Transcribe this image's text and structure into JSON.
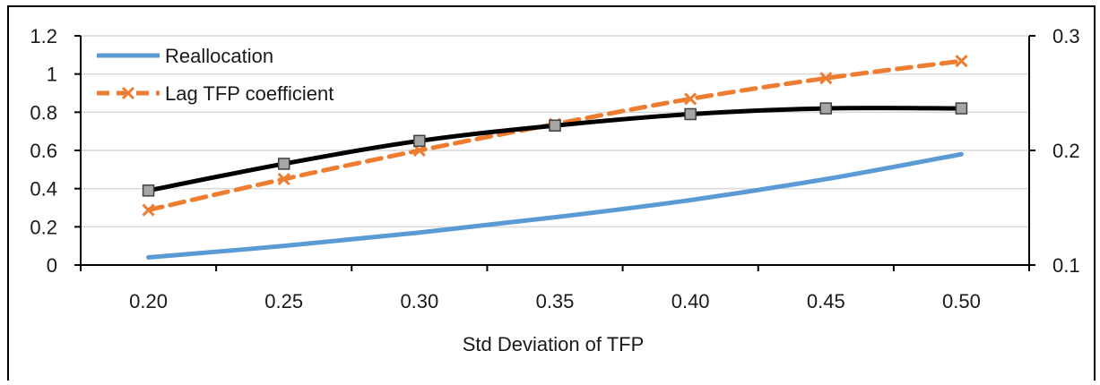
{
  "caption": {
    "text": ""
  },
  "chart_data": {
    "type": "line",
    "title": "",
    "xlabel": "Std Deviation of TFP",
    "ylabel_left": "",
    "ylabel_right": "",
    "categories": [
      "0.20",
      "0.25",
      "0.30",
      "0.35",
      "0.40",
      "0.45",
      "0.50"
    ],
    "left_axis": {
      "range": [
        0,
        1.2
      ],
      "ticks": [
        "0",
        "0.2",
        "0.4",
        "0.6",
        "0.8",
        "1",
        "1.2"
      ]
    },
    "right_axis": {
      "range": [
        0.1,
        0.3
      ],
      "ticks": [
        "0.1",
        "0.2",
        "0.3"
      ]
    },
    "grid": true,
    "legend_position": "top-left",
    "series": [
      {
        "name": "Reallocation",
        "axis": "left",
        "color": "#5b9bd5",
        "style": "solid",
        "marker": "none",
        "values": [
          0.04,
          0.1,
          0.17,
          0.25,
          0.34,
          0.45,
          0.58
        ]
      },
      {
        "name": "Lag TFP coefficient",
        "axis": "right",
        "color": "#ed7d31",
        "style": "dashed",
        "marker": "x",
        "values": [
          0.148,
          0.175,
          0.2,
          0.223,
          0.245,
          0.263,
          0.278
        ]
      },
      {
        "name": "",
        "axis": "left",
        "color": "#000000",
        "style": "solid",
        "marker": "square",
        "values": [
          0.39,
          0.53,
          0.65,
          0.73,
          0.79,
          0.82,
          0.82
        ]
      }
    ]
  }
}
